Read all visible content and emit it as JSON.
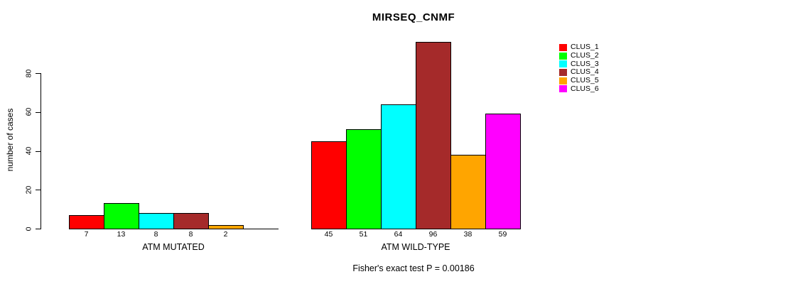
{
  "title": "MIRSEQ_CNMF",
  "y_axis_label": "number of cases",
  "footnote": "Fisher's exact test P = 0.00186",
  "legend": {
    "items": [
      {
        "label": "CLUS_1",
        "color": "#FF0000"
      },
      {
        "label": "CLUS_2",
        "color": "#00FF00"
      },
      {
        "label": "CLUS_3",
        "color": "#00FFFF"
      },
      {
        "label": "CLUS_4",
        "color": "#A52A2A"
      },
      {
        "label": "CLUS_5",
        "color": "#FFA500"
      },
      {
        "label": "CLUS_6",
        "color": "#FF00FF"
      }
    ]
  },
  "chart_data": {
    "type": "bar",
    "title": "MIRSEQ_CNMF",
    "xlabel": "",
    "ylabel": "number of cases",
    "yticks": [
      0,
      20,
      40,
      60,
      80
    ],
    "ylim": [
      0,
      96
    ],
    "grid": false,
    "legend_position": "right",
    "series_names": [
      "CLUS_1",
      "CLUS_2",
      "CLUS_3",
      "CLUS_4",
      "CLUS_5",
      "CLUS_6"
    ],
    "colors": [
      "#FF0000",
      "#00FF00",
      "#00FFFF",
      "#A52A2A",
      "#FFA500",
      "#FF00FF"
    ],
    "groups": [
      {
        "label": "ATM MUTATED",
        "values": [
          7,
          13,
          8,
          8,
          2,
          0
        ],
        "bar_labels": [
          "7",
          "13",
          "8",
          "8",
          "2",
          ""
        ]
      },
      {
        "label": "ATM WILD-TYPE",
        "values": [
          45,
          51,
          64,
          96,
          38,
          59
        ],
        "bar_labels": [
          "45",
          "51",
          "64",
          "96",
          "38",
          "59"
        ]
      }
    ],
    "annotation": "Fisher's exact test P = 0.00186"
  }
}
